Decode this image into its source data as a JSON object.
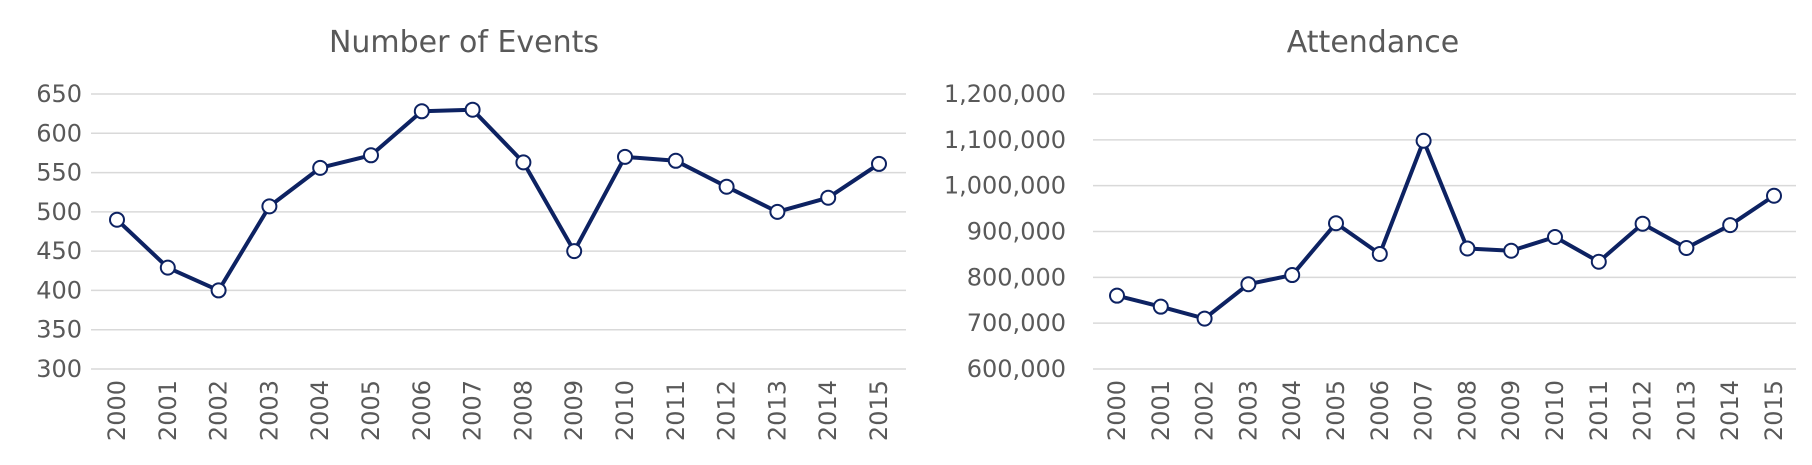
{
  "chart_data": [
    {
      "type": "line",
      "title": "Number of Events",
      "xlabel": "",
      "ylabel": "",
      "categories": [
        "2000",
        "2001",
        "2002",
        "2003",
        "2004",
        "2005",
        "2006",
        "2007",
        "2008",
        "2009",
        "2010",
        "2011",
        "2012",
        "2013",
        "2014",
        "2015"
      ],
      "series": [
        {
          "values": [
            490,
            429,
            400,
            507,
            556,
            572,
            628,
            630,
            563,
            450,
            570,
            565,
            532,
            500,
            518,
            561
          ]
        }
      ],
      "ylim": [
        300,
        650
      ],
      "yticks": [
        300,
        350,
        400,
        450,
        500,
        550,
        600,
        650
      ],
      "ytick_labels": [
        "300",
        "350",
        "400",
        "450",
        "500",
        "550",
        "600",
        "650"
      ],
      "grid": true,
      "legend": "none",
      "line_color": "#0d2262",
      "marker_fill": "#ffffff"
    },
    {
      "type": "line",
      "title": "Attendance",
      "xlabel": "",
      "ylabel": "",
      "categories": [
        "2000",
        "2001",
        "2002",
        "2003",
        "2004",
        "2005",
        "2006",
        "2007",
        "2008",
        "2009",
        "2010",
        "2011",
        "2012",
        "2013",
        "2014",
        "2015"
      ],
      "series": [
        {
          "values": [
            760000,
            736000,
            710000,
            785000,
            805000,
            918000,
            851000,
            1098000,
            863000,
            858000,
            888000,
            834000,
            917000,
            864000,
            914000,
            978000
          ]
        }
      ],
      "ylim": [
        600000,
        1200000
      ],
      "yticks": [
        600000,
        700000,
        800000,
        900000,
        1000000,
        1100000,
        1200000
      ],
      "ytick_labels": [
        "600,000",
        "700,000",
        "800,000",
        "900,000",
        "1,000,000",
        "1,100,000",
        "1,200,000"
      ],
      "grid": true,
      "legend": "none",
      "line_color": "#0d2262",
      "marker_fill": "#ffffff"
    }
  ]
}
